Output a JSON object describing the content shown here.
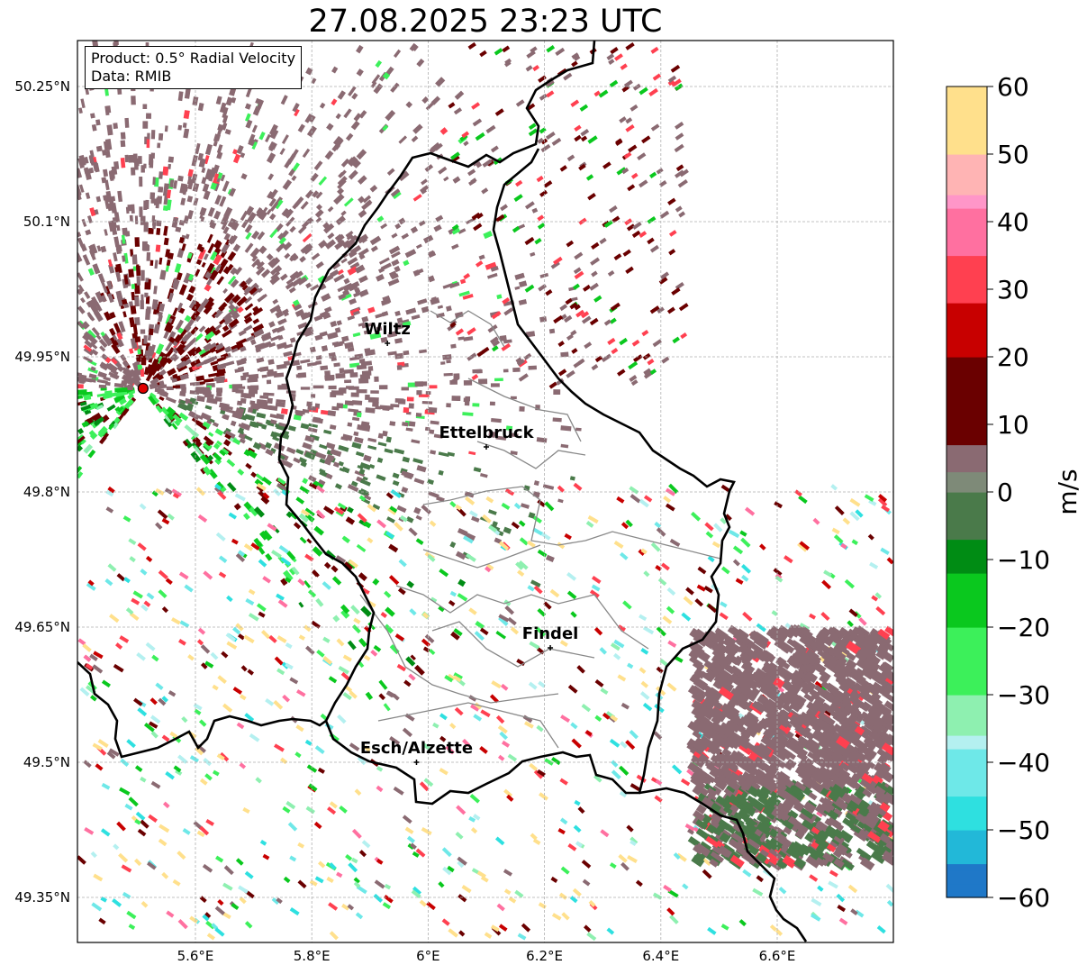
{
  "title": "27.08.2025 23:23 UTC",
  "info": {
    "product": "Product: 0.5° Radial Velocity",
    "data": "Data: RMIB"
  },
  "axes": {
    "lon_ticks": [
      {
        "value": 5.6,
        "label": "5.6°E"
      },
      {
        "value": 5.8,
        "label": "5.8°E"
      },
      {
        "value": 6.0,
        "label": "6°E"
      },
      {
        "value": 6.2,
        "label": "6.2°E"
      },
      {
        "value": 6.4,
        "label": "6.4°E"
      },
      {
        "value": 6.6,
        "label": "6.6°E"
      }
    ],
    "lat_ticks": [
      {
        "value": 50.25,
        "label": "50.25°N"
      },
      {
        "value": 50.1,
        "label": "50.1°N"
      },
      {
        "value": 49.95,
        "label": "49.95°N"
      },
      {
        "value": 49.8,
        "label": "49.8°N"
      },
      {
        "value": 49.65,
        "label": "49.65°N"
      },
      {
        "value": 49.5,
        "label": "49.5°N"
      },
      {
        "value": 49.35,
        "label": "49.35°N"
      }
    ],
    "lon_range": [
      5.4,
      6.8
    ],
    "lat_range": [
      49.3,
      50.3
    ]
  },
  "radar_site": {
    "lon": 5.51,
    "lat": 49.915
  },
  "cities": [
    {
      "name": "Wiltz",
      "lon": 5.93,
      "lat": 49.965
    },
    {
      "name": "Ettelbruck",
      "lon": 6.1,
      "lat": 49.85
    },
    {
      "name": "Findel",
      "lon": 6.21,
      "lat": 49.627
    },
    {
      "name": "Esch/Alzette",
      "lon": 5.98,
      "lat": 49.5
    }
  ],
  "colorbar": {
    "label": "m/s",
    "min": -60,
    "max": 60,
    "ticks": [
      {
        "value": 60,
        "label": "60"
      },
      {
        "value": 50,
        "label": "50"
      },
      {
        "value": 40,
        "label": "40"
      },
      {
        "value": 30,
        "label": "30"
      },
      {
        "value": 20,
        "label": "20"
      },
      {
        "value": 10,
        "label": "10"
      },
      {
        "value": 0,
        "label": "0"
      },
      {
        "value": -10,
        "label": "−10"
      },
      {
        "value": -20,
        "label": "−20"
      },
      {
        "value": -30,
        "label": "−30"
      },
      {
        "value": -40,
        "label": "−40"
      },
      {
        "value": -50,
        "label": "−50"
      },
      {
        "value": -60,
        "label": "−60"
      }
    ],
    "stops": [
      {
        "v": -60,
        "color": "#1f78c8"
      },
      {
        "v": -55,
        "color": "#22b8d8"
      },
      {
        "v": -50,
        "color": "#2ee0e0"
      },
      {
        "v": -45,
        "color": "#6ee8e8"
      },
      {
        "v": -38,
        "color": "#b4f0f0"
      },
      {
        "v": -36,
        "color": "#8ef0b0"
      },
      {
        "v": -30,
        "color": "#3cf05a"
      },
      {
        "v": -20,
        "color": "#0ac81e"
      },
      {
        "v": -12,
        "color": "#008c14"
      },
      {
        "v": -7,
        "color": "#006400"
      },
      {
        "v": -7,
        "color": "#4a7a4a"
      },
      {
        "v": 0,
        "color": "#7e8a78"
      },
      {
        "v": 3,
        "color": "#8a6a72"
      },
      {
        "v": 7,
        "color": "#804048"
      },
      {
        "v": 7,
        "color": "#6a0000"
      },
      {
        "v": 20,
        "color": "#c80000"
      },
      {
        "v": 28,
        "color": "#f00000"
      },
      {
        "v": 28,
        "color": "#ff4050"
      },
      {
        "v": 35,
        "color": "#ff70a0"
      },
      {
        "v": 42,
        "color": "#ff96c8"
      },
      {
        "v": 44,
        "color": "#ffb4b4"
      },
      {
        "v": 50,
        "color": "#ffe08c"
      },
      {
        "v": 60,
        "color": "#ff9848"
      }
    ]
  }
}
